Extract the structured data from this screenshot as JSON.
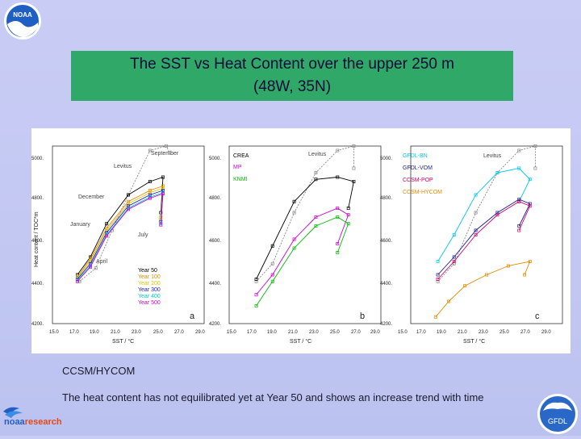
{
  "slide": {
    "title_line1": "The SST vs Heat Content over the upper 250 m",
    "title_line2": "(48W, 35N)",
    "caption": "CCSM/HYCOM",
    "note": "The heat content has not equilibrated yet at Year 50 and shows an increase trend with time"
  },
  "logos": {
    "noaa": "NOAA",
    "noaa_research_a": "noaa",
    "noaa_research_b": "research",
    "gfdl": "GFDL"
  },
  "figure": {
    "ylabel": "Heat content / TOC*m",
    "xlabel": "SST / °C",
    "yticks": [
      "5000.",
      "4800.",
      "4600.",
      "4400.",
      "4200."
    ],
    "xticks": [
      "15.0",
      "17.0",
      "19.0",
      "21.0",
      "23.0",
      "25.0",
      "27.0",
      "29.0"
    ],
    "panel_a": {
      "letter": "a",
      "labels": {
        "september": "September",
        "levitus": "Levitus",
        "december": "December",
        "january": "January",
        "july": "July",
        "april": "April"
      },
      "legend": [
        {
          "text": "Year 50",
          "color": "#000000"
        },
        {
          "text": "Year 100",
          "color": "#e08a00"
        },
        {
          "text": "Year 200",
          "color": "#e8e800"
        },
        {
          "text": "Year 300",
          "color": "#1a1acc"
        },
        {
          "text": "Year 400",
          "color": "#00c8c8"
        },
        {
          "text": "Year 500",
          "color": "#d000d0"
        }
      ]
    },
    "panel_b": {
      "letter": "b",
      "levitus": "Levitus",
      "legend": [
        {
          "text": "CREA",
          "color": "#000000"
        },
        {
          "text": "MP",
          "color": "#cc00cc"
        },
        {
          "text": "KNMI",
          "color": "#00bb00"
        }
      ]
    },
    "panel_c": {
      "letter": "c",
      "levitus": "Levitus",
      "legend": [
        {
          "text": "GFDL-BN",
          "color": "#00c8ee"
        },
        {
          "text": "GFDL-VOM",
          "color": "#1a1a99"
        },
        {
          "text": "CCSM-POP",
          "color": "#cc0066"
        },
        {
          "text": "CCSM-HYCOM",
          "color": "#e08a00"
        }
      ]
    }
  },
  "chart_data": [
    {
      "type": "line",
      "title": "",
      "xlabel": "SST / °C",
      "ylabel": "Heat content / TOC*m",
      "xlim": [
        15,
        29
      ],
      "ylim": [
        4200,
        5000
      ],
      "series": [
        {
          "name": "Levitus",
          "x": [
            17.5,
            19,
            20.5,
            22,
            24,
            25.5,
            25.8
          ],
          "y": [
            4390,
            4450,
            4620,
            4780,
            4980,
            5050,
            4970
          ]
        },
        {
          "name": "Year 50",
          "x": [
            17.3,
            18.5,
            20,
            22,
            24,
            25.2,
            25
          ],
          "y": [
            4420,
            4500,
            4650,
            4780,
            4840,
            4860,
            4700
          ]
        },
        {
          "name": "Year 100",
          "x": [
            17.3,
            18.5,
            20,
            22,
            24,
            25.2,
            25
          ],
          "y": [
            4410,
            4490,
            4630,
            4750,
            4800,
            4820,
            4680
          ]
        },
        {
          "name": "Year 200",
          "x": [
            17.3,
            18.5,
            20,
            22,
            24,
            25.2,
            25
          ],
          "y": [
            4405,
            4480,
            4620,
            4740,
            4790,
            4810,
            4670
          ]
        },
        {
          "name": "Year 300",
          "x": [
            17.3,
            18.5,
            20,
            22,
            24,
            25.2,
            25
          ],
          "y": [
            4400,
            4470,
            4610,
            4730,
            4780,
            4800,
            4660
          ]
        },
        {
          "name": "Year 400",
          "x": [
            17.3,
            18.5,
            20,
            22,
            24,
            25.2,
            25
          ],
          "y": [
            4395,
            4460,
            4600,
            4720,
            4770,
            4790,
            4650
          ]
        },
        {
          "name": "Year 500",
          "x": [
            17.3,
            18.5,
            20,
            22,
            24,
            25.2,
            25
          ],
          "y": [
            4390,
            4455,
            4595,
            4715,
            4765,
            4785,
            4645
          ]
        }
      ]
    },
    {
      "type": "line",
      "title": "",
      "xlabel": "SST / °C",
      "ylabel": "",
      "xlim": [
        15,
        29
      ],
      "ylim": [
        4200,
        5000
      ],
      "series": [
        {
          "name": "Levitus",
          "x": [
            17.5,
            19,
            21,
            23,
            25,
            26.5,
            26.5
          ],
          "y": [
            4390,
            4470,
            4700,
            4880,
            4980,
            5050,
            4900
          ]
        },
        {
          "name": "CREA",
          "x": [
            17.5,
            19,
            21,
            23,
            25,
            26.5,
            26
          ],
          "y": [
            4400,
            4550,
            4750,
            4850,
            4860,
            4840,
            4720
          ]
        },
        {
          "name": "MP",
          "x": [
            17.5,
            19,
            21,
            23,
            25,
            26,
            25
          ],
          "y": [
            4330,
            4420,
            4580,
            4680,
            4720,
            4690,
            4560
          ]
        },
        {
          "name": "KNMI",
          "x": [
            17.5,
            19,
            21,
            23,
            25,
            26,
            25
          ],
          "y": [
            4280,
            4390,
            4540,
            4640,
            4680,
            4650,
            4520
          ]
        }
      ]
    },
    {
      "type": "line",
      "title": "",
      "xlabel": "SST / °C",
      "ylabel": "",
      "xlim": [
        15,
        29
      ],
      "ylim": [
        4200,
        5000
      ],
      "series": [
        {
          "name": "Levitus",
          "x": [
            17.5,
            19,
            21,
            23,
            25,
            26.5,
            26.5
          ],
          "y": [
            4390,
            4470,
            4700,
            4880,
            4980,
            5050,
            4900
          ]
        },
        {
          "name": "GFDL-BN",
          "x": [
            17.5,
            19,
            21,
            23,
            25,
            26,
            25
          ],
          "y": [
            4480,
            4600,
            4780,
            4880,
            4900,
            4850,
            4750
          ]
        },
        {
          "name": "GFDL-VOM",
          "x": [
            17.5,
            19,
            21,
            23,
            25,
            26,
            25
          ],
          "y": [
            4420,
            4500,
            4620,
            4700,
            4760,
            4740,
            4640
          ]
        },
        {
          "name": "CCSM-POP",
          "x": [
            17.5,
            19,
            21,
            23,
            25,
            26,
            25
          ],
          "y": [
            4400,
            4480,
            4600,
            4690,
            4750,
            4730,
            4620
          ]
        },
        {
          "name": "CCSM-HYCOM",
          "x": [
            17.3,
            18.5,
            20,
            22,
            24,
            26,
            25.5
          ],
          "y": [
            4230,
            4300,
            4370,
            4420,
            4460,
            4480,
            4420
          ]
        }
      ]
    }
  ]
}
